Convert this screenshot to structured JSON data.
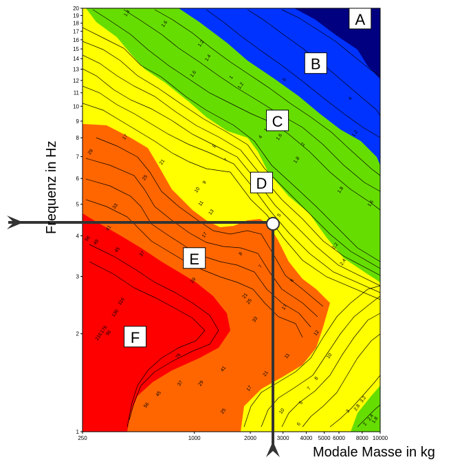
{
  "chart_data": {
    "type": "contour",
    "title": "",
    "xlabel": "Modale Masse in kg",
    "ylabel": "Frequenz in Hz",
    "x_scale": "log",
    "y_scale": "log",
    "xlim": [
      250,
      10000
    ],
    "ylim": [
      1,
      20
    ],
    "x_ticks": [
      "250",
      "1000",
      "2000",
      "3000",
      "4000",
      "5000",
      "6000",
      "8000",
      "10000"
    ],
    "x_tick_values": [
      250,
      1000,
      2000,
      3000,
      4000,
      5000,
      6000,
      8000,
      10000
    ],
    "y_ticks": [
      "1",
      "2",
      "3",
      "4",
      "5",
      "6",
      "7",
      "8",
      "9",
      "10",
      "11",
      "12",
      "13",
      "14",
      "15",
      "16",
      "17",
      "18",
      "19",
      "20"
    ],
    "y_tick_values": [
      1,
      2,
      3,
      4,
      5,
      6,
      7,
      8,
      9,
      10,
      11,
      12,
      13,
      14,
      15,
      16,
      17,
      18,
      19,
      20
    ],
    "zones": [
      {
        "label": "A",
        "color": "#000080"
      },
      {
        "label": "B",
        "color": "#0033ff"
      },
      {
        "label": "C",
        "color": "#66dd00"
      },
      {
        "label": "D",
        "color": "#ffff00"
      },
      {
        "label": "E",
        "color": "#ff6600"
      },
      {
        "label": "F",
        "color": "#ff0000"
      }
    ],
    "zone_label_points": [
      {
        "label": "A",
        "x": 7800,
        "y": 18.5
      },
      {
        "label": "B",
        "x": 4500,
        "y": 13.5
      },
      {
        "label": "C",
        "x": 2800,
        "y": 9.0
      },
      {
        "label": "D",
        "x": 2300,
        "y": 5.8
      },
      {
        "label": "E",
        "x": 1000,
        "y": 3.4
      },
      {
        "label": "F",
        "x": 480,
        "y": 1.95
      }
    ],
    "contour_labels": [
      {
        "text": "1.4",
        "x": 440,
        "y": 19.2
      },
      {
        "text": "1.6",
        "x": 700,
        "y": 17.8
      },
      {
        "text": "1.2",
        "x": 1100,
        "y": 15.5
      },
      {
        "text": "1.4",
        "x": 1200,
        "y": 14.0
      },
      {
        "text": "1.6",
        "x": 1000,
        "y": 12.5
      },
      {
        "text": "1",
        "x": 1600,
        "y": 12.2
      },
      {
        "text": "1.2",
        "x": 1800,
        "y": 11.5
      },
      {
        "text": "1.4",
        "x": 2500,
        "y": 8.5
      },
      {
        "text": "1.6",
        "x": 2900,
        "y": 8.0
      },
      {
        "text": "1.8",
        "x": 3600,
        "y": 6.8
      },
      {
        "text": "2",
        "x": 3900,
        "y": 7.6
      },
      {
        "text": "6",
        "x": 3100,
        "y": 12.0
      },
      {
        "text": "4",
        "x": 7000,
        "y": 10.5
      },
      {
        "text": "1.2",
        "x": 7400,
        "y": 8.2
      },
      {
        "text": "1.6",
        "x": 9000,
        "y": 5.0
      },
      {
        "text": "1.8",
        "x": 6200,
        "y": 5.5
      },
      {
        "text": "2.2",
        "x": 5800,
        "y": 3.7
      },
      {
        "text": "2.4",
        "x": 6400,
        "y": 3.3
      },
      {
        "text": "8",
        "x": 1300,
        "y": 7.5
      },
      {
        "text": "7",
        "x": 1500,
        "y": 6.8
      },
      {
        "text": "9",
        "x": 1150,
        "y": 5.8
      },
      {
        "text": "10",
        "x": 1050,
        "y": 5.5
      },
      {
        "text": "11",
        "x": 1100,
        "y": 5.0
      },
      {
        "text": "13",
        "x": 1250,
        "y": 4.7
      },
      {
        "text": "5",
        "x": 2900,
        "y": 4.6
      },
      {
        "text": "4",
        "x": 2300,
        "y": 8.0
      },
      {
        "text": "17",
        "x": 430,
        "y": 8.0
      },
      {
        "text": "29",
        "x": 280,
        "y": 7.2
      },
      {
        "text": "25",
        "x": 550,
        "y": 6.0
      },
      {
        "text": "21",
        "x": 680,
        "y": 6.7
      },
      {
        "text": "33",
        "x": 380,
        "y": 4.9
      },
      {
        "text": "41",
        "x": 350,
        "y": 4.2
      },
      {
        "text": "49",
        "x": 300,
        "y": 3.8
      },
      {
        "text": "56",
        "x": 270,
        "y": 3.9
      },
      {
        "text": "45",
        "x": 390,
        "y": 3.6
      },
      {
        "text": "37",
        "x": 530,
        "y": 3.5
      },
      {
        "text": "17",
        "x": 1150,
        "y": 4.0
      },
      {
        "text": "8",
        "x": 1800,
        "y": 3.5
      },
      {
        "text": "7",
        "x": 2300,
        "y": 3.2
      },
      {
        "text": "6",
        "x": 3400,
        "y": 2.9
      },
      {
        "text": "29",
        "x": 1000,
        "y": 2.9
      },
      {
        "text": "21",
        "x": 1900,
        "y": 2.6
      },
      {
        "text": "25",
        "x": 2000,
        "y": 2.5
      },
      {
        "text": "33",
        "x": 2150,
        "y": 2.2
      },
      {
        "text": "17",
        "x": 3100,
        "y": 2.4
      },
      {
        "text": "12",
        "x": 4600,
        "y": 2.0
      },
      {
        "text": "76",
        "x": 830,
        "y": 1.7
      },
      {
        "text": "41",
        "x": 1450,
        "y": 1.55
      },
      {
        "text": "29",
        "x": 1100,
        "y": 1.4
      },
      {
        "text": "37",
        "x": 850,
        "y": 1.4
      },
      {
        "text": "45",
        "x": 650,
        "y": 1.3
      },
      {
        "text": "56",
        "x": 560,
        "y": 1.2
      },
      {
        "text": "17",
        "x": 2000,
        "y": 1.35
      },
      {
        "text": "21",
        "x": 2450,
        "y": 1.5
      },
      {
        "text": "25",
        "x": 1450,
        "y": 1.15
      },
      {
        "text": "10",
        "x": 3000,
        "y": 1.15
      },
      {
        "text": "11",
        "x": 3200,
        "y": 1.7
      },
      {
        "text": "8",
        "x": 4600,
        "y": 1.45
      },
      {
        "text": "7",
        "x": 4200,
        "y": 1.35
      },
      {
        "text": "6",
        "x": 3700,
        "y": 1.05
      },
      {
        "text": "5",
        "x": 3800,
        "y": 1.22
      },
      {
        "text": "10",
        "x": 5400,
        "y": 1.7
      },
      {
        "text": "3",
        "x": 6800,
        "y": 1.15
      },
      {
        "text": "2.8",
        "x": 7600,
        "y": 1.18
      },
      {
        "text": "3.2",
        "x": 8200,
        "y": 1.25
      },
      {
        "text": "2.4",
        "x": 9000,
        "y": 1.1
      },
      {
        "text": "1.8",
        "x": 9500,
        "y": 1.08
      },
      {
        "text": "2",
        "x": 8400,
        "y": 1.05
      },
      {
        "text": "136",
        "x": 380,
        "y": 2.3
      },
      {
        "text": "116",
        "x": 410,
        "y": 2.5
      },
      {
        "text": "96",
        "x": 350,
        "y": 2.0
      },
      {
        "text": "176",
        "x": 330,
        "y": 2.05
      },
      {
        "text": "216",
        "x": 310,
        "y": 1.95
      }
    ],
    "annotation": {
      "marker_x": 2700,
      "marker_y": 4.5,
      "description": "horizontal arrow at f = 4.5 Hz meets vertical arrow at m = 2700 kg, circle marks intersection"
    }
  },
  "labels": {
    "ylabel": "Frequenz in Hz",
    "xlabel": "Modale Masse in kg"
  }
}
